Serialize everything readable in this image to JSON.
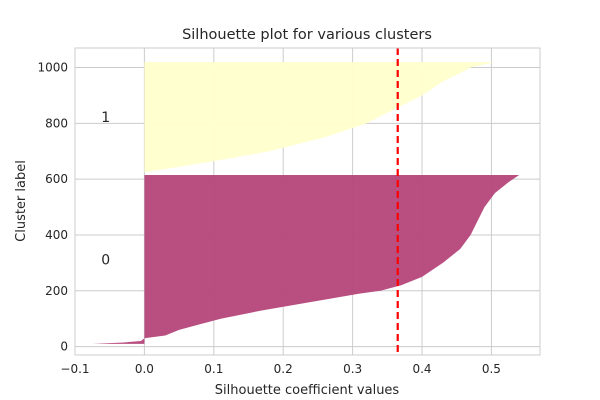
{
  "chart_data": {
    "type": "area",
    "title": "Silhouette plot for various clusters",
    "xlabel": "Silhouette coefficient values",
    "ylabel": "Cluster label",
    "xlim": [
      -0.1,
      0.57
    ],
    "ylim": [
      -30,
      1070
    ],
    "xticks": [
      -0.1,
      0.0,
      0.1,
      0.2,
      0.3,
      0.4,
      0.5
    ],
    "xtick_labels": [
      "−0.1",
      "0.0",
      "0.1",
      "0.2",
      "0.3",
      "0.4",
      "0.5"
    ],
    "yticks": [
      0,
      200,
      400,
      600,
      800,
      1000
    ],
    "ytick_labels": [
      "0",
      "200",
      "400",
      "600",
      "800",
      "1000"
    ],
    "grid": true,
    "average_silhouette": 0.365,
    "series": [
      {
        "label": "0",
        "color": "#b5467a",
        "y_range": [
          10,
          615
        ],
        "profile": [
          [
            10,
            -0.075
          ],
          [
            15,
            -0.03
          ],
          [
            20,
            -0.005
          ],
          [
            30,
            0.0
          ],
          [
            40,
            0.03
          ],
          [
            60,
            0.05
          ],
          [
            80,
            0.08
          ],
          [
            100,
            0.11
          ],
          [
            130,
            0.17
          ],
          [
            160,
            0.24
          ],
          [
            190,
            0.31
          ],
          [
            200,
            0.34
          ],
          [
            220,
            0.37
          ],
          [
            250,
            0.4
          ],
          [
            300,
            0.43
          ],
          [
            350,
            0.455
          ],
          [
            400,
            0.47
          ],
          [
            450,
            0.48
          ],
          [
            500,
            0.49
          ],
          [
            550,
            0.505
          ],
          [
            590,
            0.525
          ],
          [
            615,
            0.54
          ]
        ]
      },
      {
        "label": "1",
        "color": "#ffffcc",
        "y_range": [
          625,
          1020
        ],
        "profile": [
          [
            625,
            0.0
          ],
          [
            660,
            0.09
          ],
          [
            700,
            0.18
          ],
          [
            750,
            0.26
          ],
          [
            800,
            0.32
          ],
          [
            850,
            0.36
          ],
          [
            900,
            0.4
          ],
          [
            950,
            0.43
          ],
          [
            980,
            0.455
          ],
          [
            1000,
            0.47
          ],
          [
            1020,
            0.505
          ]
        ]
      }
    ]
  }
}
